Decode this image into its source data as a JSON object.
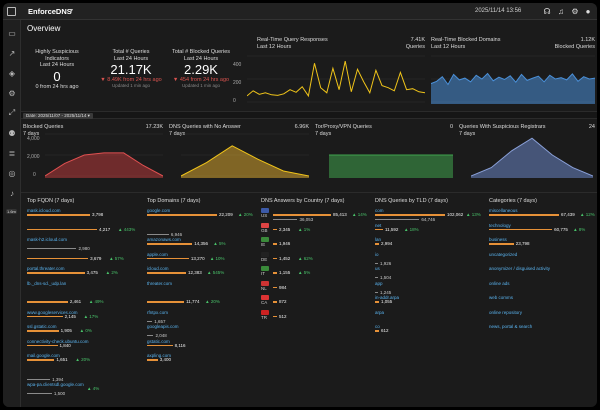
{
  "app": {
    "title": "EnforceDNS",
    "datetime": "2025/11/14 13:56"
  },
  "page_title": "Overview",
  "colors": {
    "accent_red": "#d9534f",
    "area_red": "#b5383a",
    "area_yellow": "#d4a22d",
    "area_green": "#3fa34d",
    "area_blue": "#6a85c4",
    "line_yellow": "#f0c419",
    "line_blue": "#4a90d9",
    "bar_orange": "#e69138",
    "link_blue": "#5ab4f0",
    "up_green": "#49c36a"
  },
  "topbar_icons": [
    "headset-icon",
    "bell-icon",
    "gear-icon",
    "user-icon"
  ],
  "sidebar_icons": [
    "monitor-icon",
    "trend-icon",
    "shield-icon",
    "gear-icon",
    "expand-icon",
    "users-icon",
    "dns-icon",
    "broadcast-icon",
    "bell-icon"
  ],
  "sidebar_badge": "1.6m",
  "stats": [
    {
      "title": "Highly Suspicious Indicators",
      "subtitle": "Last 24 Hours",
      "value": "0",
      "delta": "0 from 24 hrs ago",
      "updated": ""
    },
    {
      "title": "Total # Queries",
      "subtitle": "Last 24 Hours",
      "value": "21.17K",
      "delta": "▼ 8.49K from 24 hrs ago",
      "updated": "Updated 1 min ago"
    },
    {
      "title": "Total # Blocked Queries",
      "subtitle": "Last 24 Hours",
      "value": "2.29K",
      "delta": "▼ 454 from 24 hrs ago",
      "updated": "Updated 1 min ago"
    }
  ],
  "realtime_queries": {
    "title": "Real-Time Query Responses",
    "subtitle": "Last 12 Hours",
    "legend_value": "7.41K",
    "legend_label": "Queries",
    "y_ticks": [
      "400",
      "200",
      "0"
    ]
  },
  "realtime_blocked": {
    "title": "Real-Time Blocked Domains",
    "subtitle": "Last 12 Hours",
    "legend_value": "1.12K",
    "legend_label": "Blocked Queries"
  },
  "date_filter": "Date: 2025/11/07 - 2025/11/14 ▾",
  "small_charts": [
    {
      "title": "Blocked Queries",
      "subtitle": "7 days",
      "value": "17.23K",
      "y_ticks": [
        "4,000",
        "2,000",
        "0"
      ]
    },
    {
      "title": "DNS Queries with No Answer",
      "subtitle": "7 days",
      "value": "6.96K",
      "y_ticks": [
        "2,000",
        "0"
      ]
    },
    {
      "title": "Tor/Proxy/VPN Queries",
      "subtitle": "7 days",
      "value": "0",
      "y_ticks": []
    },
    {
      "title": "Queries With Suspicious Registrars",
      "subtitle": "7 days",
      "value": "24",
      "y_ticks": []
    }
  ],
  "lists": {
    "fqdn": {
      "title": "Top FQDN (7 days)",
      "items": [
        {
          "label": "mask.icloud.com",
          "value": "3,798",
          "pct": "",
          "prev": ""
        },
        {
          "label": "",
          "value": "4,217",
          "pct": "▲ 443%",
          "prev": ""
        },
        {
          "label": "mask-h2.icloud.com",
          "value": "",
          "pct": "",
          "prev": "2,980"
        },
        {
          "label": "",
          "value": "3,679",
          "pct": "▲ 57%",
          "prev": ""
        },
        {
          "label": "portal.threater.com",
          "value": "3,475",
          "pct": "▲ 2%",
          "prev": ""
        },
        {
          "label": "lb._dns-sd._udp.lan",
          "value": "",
          "pct": "",
          "prev": ""
        },
        {
          "label": "",
          "value": "2,461",
          "pct": "▲ 49%",
          "prev": ""
        },
        {
          "label": "www.googleservices.com",
          "value": "2,145",
          "pct": "▲ 17%",
          "prev": ""
        },
        {
          "label": "ssl.gstatic.com",
          "value": "1,905",
          "pct": "▲ 0%",
          "prev": ""
        },
        {
          "label": "connectivity-check.ubuntu.com",
          "value": "1,840",
          "pct": "",
          "prev": ""
        },
        {
          "label": "mail.google.com",
          "value": "1,651",
          "pct": "▲ 20%",
          "prev": ""
        },
        {
          "label": "",
          "value": "",
          "pct": "",
          "prev": "1,394"
        },
        {
          "label": "wpa-pa.clientsdl.google.com",
          "value": "",
          "pct": "▲ 4%",
          "prev": "1,500"
        }
      ]
    },
    "domains": {
      "title": "Top Domains (7 days)",
      "items": [
        {
          "label": "google.com",
          "value": "22,209",
          "pct": "▲ 20%",
          "prev": ""
        },
        {
          "label": "",
          "value": "",
          "pct": "",
          "prev": "6,946"
        },
        {
          "label": "amazonaws.com",
          "value": "14,356",
          "pct": "▲ 5%",
          "prev": ""
        },
        {
          "label": "apple.com",
          "value": "13,270",
          "pct": "▲ 10%",
          "prev": ""
        },
        {
          "label": "icloud.com",
          "value": "12,383",
          "pct": "▲ 545%",
          "prev": ""
        },
        {
          "label": "threater.com",
          "value": "",
          "pct": "",
          "prev": ""
        },
        {
          "label": "",
          "value": "11,774",
          "pct": "▲ 20%",
          "prev": ""
        },
        {
          "label": "rfntpx.com",
          "value": "",
          "pct": "",
          "prev": "1,657"
        },
        {
          "label": "googleapis.com",
          "value": "",
          "pct": "",
          "prev": "2,048"
        },
        {
          "label": "gstatic.com",
          "value": "8,116",
          "pct": "",
          "prev": ""
        },
        {
          "label": "axpling.com",
          "value": "3,400",
          "pct": "",
          "prev": ""
        }
      ]
    },
    "country": {
      "title": "DNS Answers by Country (7 days)",
      "items": [
        {
          "label": "US",
          "value": "85,413",
          "pct": "▲ 14%",
          "prev": "36,053"
        },
        {
          "label": "GB",
          "value": "2,345",
          "pct": "▲ 1%",
          "prev": ""
        },
        {
          "label": "IE",
          "value": "1,946",
          "pct": "",
          "prev": ""
        },
        {
          "label": "DE",
          "value": "1,452",
          "pct": "▲ 62%",
          "prev": ""
        },
        {
          "label": "IT",
          "value": "1,155",
          "pct": "▲ 5%",
          "prev": ""
        },
        {
          "label": "NL",
          "value": "984",
          "pct": "",
          "prev": ""
        },
        {
          "label": "CA",
          "value": "872",
          "pct": "",
          "prev": ""
        },
        {
          "label": "TR",
          "value": "512",
          "pct": "",
          "prev": ""
        }
      ]
    },
    "tld": {
      "title": "DNS Queries by TLD (7 days)",
      "items": [
        {
          "label": "com",
          "value": "102,062",
          "pct": "▲ 13%",
          "prev": "64,746"
        },
        {
          "label": "net",
          "value": "11,592",
          "pct": "▲ 18%",
          "prev": ""
        },
        {
          "label": "lan",
          "value": "2,994",
          "pct": "",
          "prev": ""
        },
        {
          "label": "io",
          "value": "",
          "pct": "",
          "prev": "1,926"
        },
        {
          "label": "us",
          "value": "",
          "pct": "",
          "prev": "1,504"
        },
        {
          "label": "app",
          "value": "",
          "pct": "",
          "prev": "1,245"
        },
        {
          "label": "in-addr.arpa",
          "value": "1,055",
          "pct": "",
          "prev": ""
        },
        {
          "label": "arpa",
          "value": "",
          "pct": "",
          "prev": ""
        },
        {
          "label": "co",
          "value": "612",
          "pct": "",
          "prev": ""
        }
      ]
    },
    "categories": {
      "title": "Categories (7 days)",
      "items": [
        {
          "label": "miscellaneous",
          "value": "67,439",
          "pct": "▲ 12%",
          "prev": ""
        },
        {
          "label": "technology",
          "value": "60,775",
          "pct": "▲ 8%",
          "prev": ""
        },
        {
          "label": "business",
          "value": "23,798",
          "pct": "",
          "prev": ""
        },
        {
          "label": "uncategorized",
          "value": "",
          "pct": "",
          "prev": ""
        },
        {
          "label": "anonymizer / disguised activity",
          "value": "",
          "pct": "",
          "prev": ""
        },
        {
          "label": "online ads",
          "value": "",
          "pct": "",
          "prev": ""
        },
        {
          "label": "web comms",
          "value": "",
          "pct": "",
          "prev": ""
        },
        {
          "label": "online repository",
          "value": "",
          "pct": "",
          "prev": ""
        },
        {
          "label": "news, portal & search",
          "value": "",
          "pct": "",
          "prev": ""
        }
      ]
    }
  },
  "chart_data": [
    {
      "type": "line",
      "name": "realtime-queries",
      "ylim": [
        0,
        450
      ],
      "values": [
        60,
        110,
        75,
        90,
        70,
        65,
        80,
        120,
        95,
        150,
        60,
        380,
        140,
        90,
        330,
        120,
        400,
        100,
        320,
        200,
        90,
        310,
        160,
        140,
        110,
        290,
        120,
        130,
        100,
        90
      ]
    },
    {
      "type": "line",
      "name": "realtime-blocked",
      "ylim": [
        0,
        100
      ],
      "values": [
        40,
        45,
        55,
        38,
        60,
        48,
        52,
        44,
        58,
        50,
        62,
        46,
        54,
        49,
        57,
        43,
        60,
        47,
        52,
        56,
        44,
        58,
        50,
        53,
        48,
        61,
        45,
        55,
        50,
        52
      ]
    },
    {
      "type": "area",
      "name": "blocked-queries",
      "ylim": [
        0,
        4000
      ],
      "values": [
        0,
        1200,
        2000,
        2200,
        2200,
        1000,
        0
      ]
    },
    {
      "type": "area",
      "name": "no-answer",
      "ylim": [
        0,
        2500
      ],
      "values": [
        0,
        800,
        1800,
        1000,
        300,
        0
      ]
    },
    {
      "type": "area",
      "name": "tor-proxy",
      "ylim": [
        0,
        10
      ],
      "values": [
        5,
        5,
        5,
        5,
        5,
        5
      ]
    },
    {
      "type": "area",
      "name": "suspicious-registrars",
      "ylim": [
        0,
        10
      ],
      "values": [
        0,
        2,
        6,
        9,
        5,
        2,
        0
      ]
    }
  ]
}
